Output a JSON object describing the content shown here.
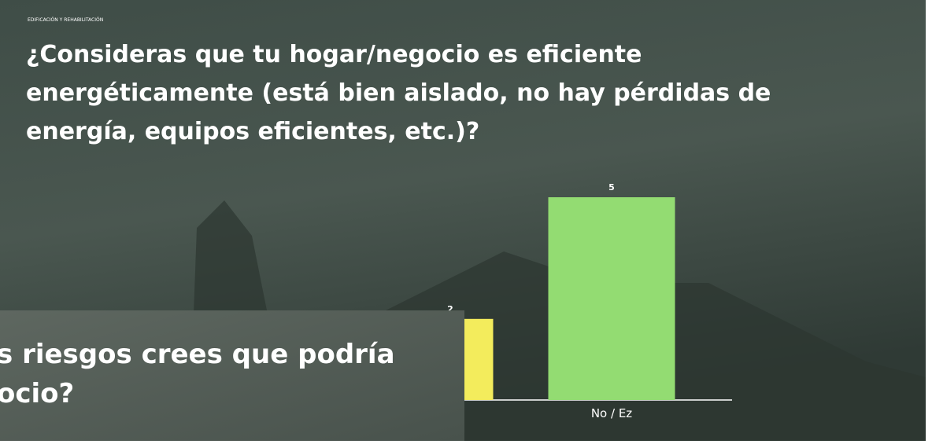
{
  "slide": {
    "section": "EDIFICACIÓN Y REHABILITACIÓN",
    "title_lines": [
      "¿Consideras que tu hogar/negocio es eficiente",
      "energéticamente (está bien aislado, no hay pérdidas de",
      "energía, equipos eficientes, etc.)?"
    ]
  },
  "overlay_slide": {
    "title_lines": [
      "s riesgos crees que podría",
      "ocio?"
    ]
  },
  "chart_data": {
    "type": "bar",
    "categories": [
      null,
      "No / Ez"
    ],
    "values": [
      2,
      5
    ],
    "colors": [
      "#f3ec5c",
      "#93dc72"
    ]
  }
}
